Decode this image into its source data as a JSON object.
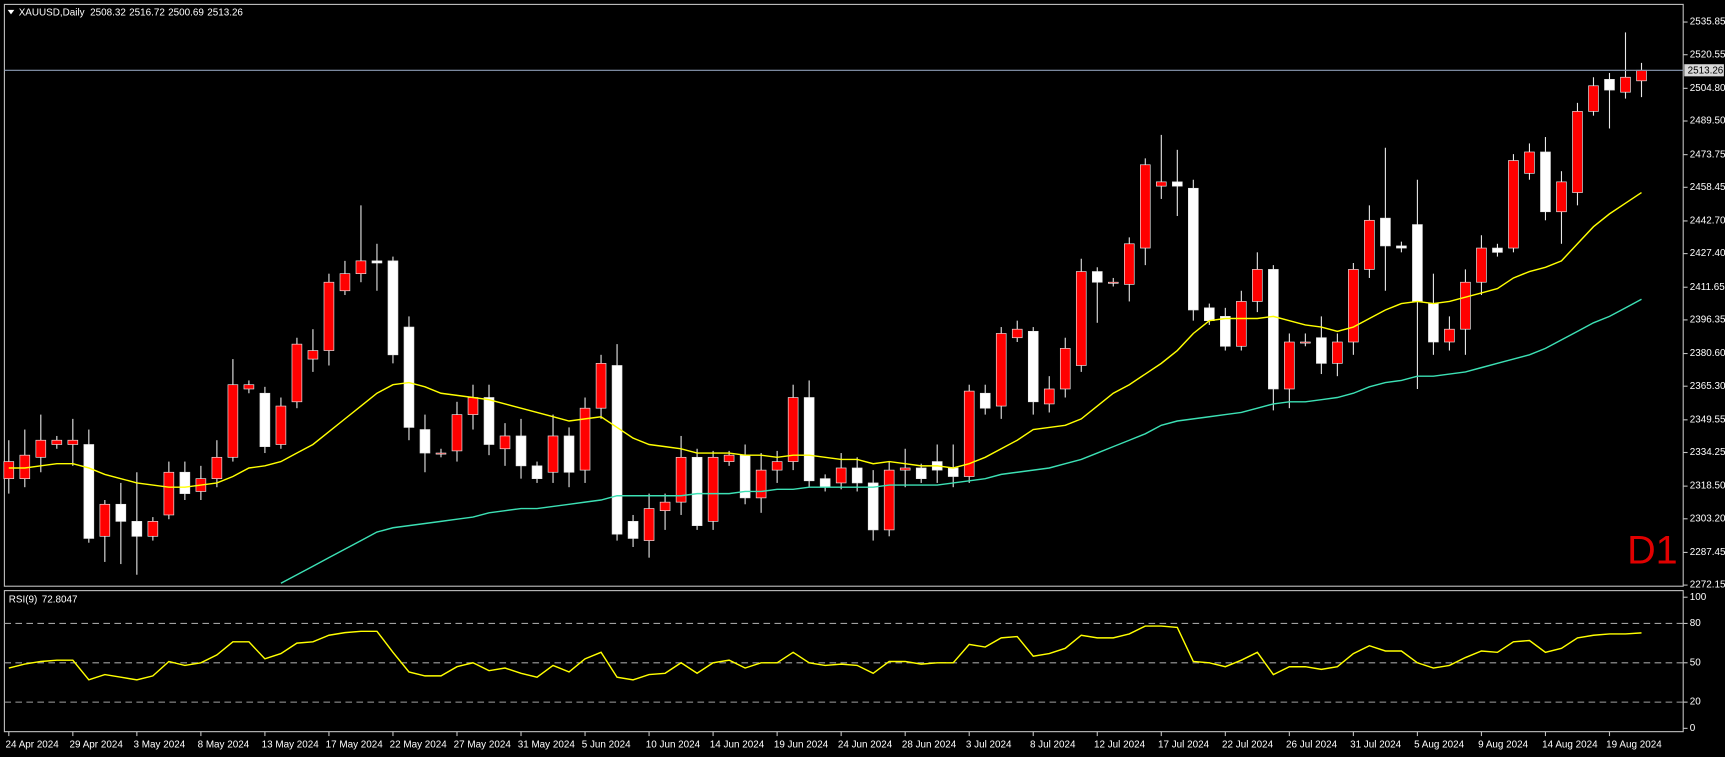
{
  "chart_data": [
    {
      "type": "candlestick",
      "title": "XAUUSD,Daily",
      "annotation": "D1",
      "categories": [
        "24 Apr 2024",
        null,
        null,
        null,
        "29 Apr 2024",
        null,
        null,
        null,
        "3 May 2024",
        null,
        null,
        null,
        "8 May 2024",
        null,
        null,
        null,
        "13 May 2024",
        null,
        null,
        null,
        "17 May 2024",
        null,
        null,
        null,
        "22 May 2024",
        null,
        null,
        null,
        "27 May 2024",
        null,
        null,
        null,
        "31 May 2024",
        null,
        null,
        null,
        "5 Jun 2024",
        null,
        null,
        null,
        "10 Jun 2024",
        null,
        null,
        null,
        "14 Jun 2024",
        null,
        null,
        null,
        "19 Jun 2024",
        null,
        null,
        null,
        "24 Jun 2024",
        null,
        null,
        null,
        "28 Jun 2024",
        null,
        null,
        null,
        "3 Jul 2024",
        null,
        null,
        null,
        "8 Jul 2024",
        null,
        null,
        null,
        "12 Jul 2024",
        null,
        null,
        null,
        "17 Jul 2024",
        null,
        null,
        null,
        "22 Jul 2024",
        null,
        null,
        null,
        "26 Jul 2024",
        null,
        null,
        null,
        "31 Jul 2024",
        null,
        null,
        null,
        "5 Aug 2024",
        null,
        null,
        null,
        "9 Aug 2024",
        null,
        null,
        null,
        "14 Aug 2024",
        null,
        null,
        null,
        "19 Aug 2024",
        null,
        null
      ],
      "open": [
        2322,
        2322,
        2332,
        2338,
        2338,
        2338,
        2295,
        2310,
        2302,
        2295,
        2305,
        2325,
        2316,
        2322,
        2332,
        2364,
        2362,
        2338,
        2358,
        2378,
        2382,
        2410,
        2418,
        2424,
        2424,
        2393,
        2345,
        2334,
        2335,
        2352,
        2360,
        2336,
        2342,
        2328,
        2325,
        2342,
        2326,
        2355,
        2375,
        2302,
        2293,
        2307,
        2311,
        2332,
        2302,
        2330,
        2333,
        2313,
        2326,
        2330,
        2360,
        2322,
        2320,
        2327,
        2320,
        2298,
        2326,
        2327,
        2330,
        2327,
        2323,
        2362,
        2356,
        2388,
        2391,
        2357,
        2364,
        2375,
        2419,
        2414,
        2413,
        2430,
        2459,
        2461,
        2458,
        2402,
        2398,
        2384,
        2405,
        2420,
        2364,
        2386,
        2388,
        2376,
        2386,
        2420,
        2444,
        2431,
        2441,
        2404,
        2386,
        2392,
        2414,
        2430,
        2430,
        2465,
        2475,
        2447,
        2456,
        2494,
        2509,
        2503,
        2508.32
      ],
      "high": [
        2340,
        2345,
        2352,
        2342,
        2350,
        2345,
        2312,
        2320,
        2325,
        2304,
        2330,
        2330,
        2328,
        2340,
        2378,
        2368,
        2365,
        2360,
        2388,
        2392,
        2418,
        2424,
        2450,
        2432,
        2426,
        2398,
        2352,
        2336,
        2358,
        2366,
        2366,
        2348,
        2350,
        2330,
        2352,
        2346,
        2360,
        2380,
        2385,
        2305,
        2315,
        2315,
        2342,
        2336,
        2335,
        2335,
        2338,
        2334,
        2335,
        2366,
        2368,
        2324,
        2334,
        2332,
        2326,
        2330,
        2336,
        2329,
        2338,
        2338,
        2366,
        2366,
        2393,
        2396,
        2393,
        2370,
        2388,
        2425,
        2421,
        2416,
        2435,
        2472,
        2483,
        2476,
        2462,
        2404,
        2402,
        2410,
        2428,
        2422,
        2390,
        2390,
        2398,
        2390,
        2423,
        2450,
        2477,
        2433,
        2462,
        2418,
        2398,
        2420,
        2436,
        2432,
        2474,
        2479,
        2482,
        2466,
        2498,
        2510,
        2512,
        2531,
        2516.72
      ],
      "low": [
        2315,
        2318,
        2325,
        2336,
        2328,
        2292,
        2283,
        2282,
        2277,
        2293,
        2303,
        2312,
        2312,
        2318,
        2330,
        2362,
        2334,
        2336,
        2355,
        2372,
        2375,
        2408,
        2414,
        2410,
        2376,
        2340,
        2325,
        2332,
        2330,
        2345,
        2333,
        2328,
        2322,
        2320,
        2320,
        2318,
        2320,
        2350,
        2293,
        2290,
        2285,
        2298,
        2305,
        2298,
        2298,
        2328,
        2310,
        2306,
        2320,
        2326,
        2318,
        2316,
        2317,
        2316,
        2293,
        2295,
        2318,
        2320,
        2320,
        2318,
        2320,
        2352,
        2350,
        2386,
        2352,
        2353,
        2360,
        2372,
        2395,
        2412,
        2405,
        2422,
        2453,
        2445,
        2396,
        2394,
        2382,
        2382,
        2400,
        2354,
        2355,
        2384,
        2371,
        2370,
        2380,
        2416,
        2410,
        2428,
        2364,
        2380,
        2382,
        2380,
        2408,
        2426,
        2428,
        2462,
        2443,
        2432,
        2450,
        2492,
        2486,
        2500,
        2500.69
      ],
      "close": [
        2330,
        2333,
        2340,
        2340,
        2340,
        2294,
        2310,
        2302,
        2295,
        2302,
        2325,
        2315,
        2322,
        2332,
        2366,
        2366,
        2337,
        2356,
        2385,
        2382,
        2414,
        2418,
        2424,
        2423,
        2380,
        2346,
        2334,
        2334,
        2352,
        2360,
        2338,
        2342,
        2328,
        2322,
        2342,
        2325,
        2355,
        2376,
        2296,
        2294,
        2308,
        2311,
        2332,
        2300,
        2332,
        2333,
        2313,
        2326,
        2330,
        2360,
        2321,
        2318,
        2327,
        2320,
        2298,
        2326,
        2327,
        2322,
        2326,
        2323,
        2363,
        2355,
        2390,
        2392,
        2358,
        2364,
        2383,
        2419,
        2414,
        2414,
        2432,
        2469,
        2461,
        2459,
        2401,
        2396,
        2384,
        2405,
        2420,
        2364,
        2386,
        2386,
        2376,
        2386,
        2420,
        2443,
        2431,
        2430,
        2405,
        2386,
        2392,
        2414,
        2430,
        2428,
        2471,
        2475,
        2447,
        2461,
        2494,
        2506,
        2504,
        2510,
        2513.26
      ],
      "up_color": "#ff0000",
      "down_color": "#ffffff",
      "wick_color": "#e8e8e8",
      "lines": [
        {
          "color": "#ffff00",
          "values": [
            2327,
            2327,
            2328,
            2329,
            2329,
            2327,
            2324,
            2322,
            2320,
            2319,
            2318,
            2318,
            2319,
            2320,
            2323,
            2327,
            2328,
            2330,
            2334,
            2338,
            2344,
            2350,
            2356,
            2362,
            2366,
            2367,
            2365,
            2362,
            2361,
            2360,
            2359,
            2357,
            2355,
            2353,
            2351,
            2349,
            2350,
            2351,
            2346,
            2341,
            2338,
            2337,
            2336,
            2334,
            2334,
            2334,
            2333,
            2333,
            2332,
            2333,
            2333,
            2332,
            2331,
            2331,
            2329,
            2330,
            2329,
            2328,
            2328,
            2327,
            2329,
            2332,
            2336,
            2340,
            2345,
            2346,
            2347,
            2350,
            2356,
            2362,
            2366,
            2371,
            2376,
            2382,
            2390,
            2396,
            2397,
            2397,
            2397,
            2398,
            2396,
            2394,
            2393,
            2391,
            2393,
            2397,
            2401,
            2404,
            2405,
            2404,
            2405,
            2407,
            2409,
            2411,
            2416,
            2419,
            2421,
            2424,
            2432,
            2440,
            2446,
            2451,
            2456
          ]
        },
        {
          "color": "#3ce0b4",
          "values": [
            null,
            null,
            null,
            null,
            null,
            null,
            null,
            null,
            null,
            null,
            null,
            null,
            null,
            null,
            null,
            null,
            null,
            2273,
            2277,
            2281,
            2285,
            2289,
            2293,
            2297,
            2299,
            2300,
            2301,
            2302,
            2303,
            2304,
            2306,
            2307,
            2308,
            2308,
            2309,
            2310,
            2311,
            2312,
            2314,
            2314,
            2314,
            2314,
            2314,
            2315,
            2315,
            2315,
            2316,
            2316,
            2317,
            2317,
            2318,
            2318,
            2318,
            2318,
            2318,
            2319,
            2319,
            2319,
            2319,
            2320,
            2321,
            2322,
            2324,
            2325,
            2326,
            2327,
            2329,
            2331,
            2334,
            2337,
            2340,
            2343,
            2347,
            2349,
            2350,
            2351,
            2352,
            2353,
            2355,
            2357,
            2358,
            2358,
            2359,
            2360,
            2362,
            2365,
            2367,
            2368,
            2370,
            2370,
            2371,
            2372,
            2374,
            2376,
            2378,
            2380,
            2383,
            2387,
            2391,
            2395,
            2398,
            2402,
            2406
          ]
        }
      ],
      "ylim": [
        2271.63,
        2544.11
      ],
      "yticks": [
        2535.85,
        2520.55,
        {
          "value": 2504.8,
          "label": "2504.80"
        },
        {
          "value": 2489.5,
          "label": "2489.50"
        },
        2473.75,
        2458.45,
        {
          "value": 2442.7,
          "label": "2442.70"
        },
        {
          "value": 2427.4,
          "label": "2427.40"
        },
        2411.65,
        2396.35,
        {
          "value": 2380.6,
          "label": "2380.60"
        },
        {
          "value": 2365.3,
          "label": "2365.30"
        },
        2349.55,
        2334.25,
        {
          "value": 2318.5,
          "label": "2318.50"
        },
        {
          "value": 2303.2,
          "label": "2303.20"
        },
        2287.45,
        2272.15
      ],
      "last_price_line": true
    },
    {
      "type": "line",
      "title": "RSI(9)",
      "series": [
        {
          "color": "#ffff00",
          "values": [
            46,
            49,
            51,
            52,
            52,
            37,
            41,
            39,
            37,
            40,
            51,
            48,
            50,
            56,
            66,
            66,
            53,
            57,
            65,
            66,
            71,
            73,
            74,
            74,
            58,
            43,
            40,
            40,
            47,
            50,
            44,
            46,
            42,
            39,
            48,
            43,
            53,
            58,
            39,
            37,
            41,
            42,
            50,
            42,
            50,
            52,
            46,
            50,
            50,
            58,
            50,
            48,
            49,
            48,
            42,
            51,
            51,
            49,
            50,
            50,
            64,
            62,
            69,
            70,
            55,
            57,
            61,
            71,
            69,
            69,
            72,
            78,
            78,
            77,
            51,
            50,
            47,
            52,
            58,
            41,
            47,
            47,
            45,
            47,
            57,
            63,
            59,
            59,
            50,
            46,
            48,
            54,
            59,
            58,
            66,
            67,
            58,
            61,
            69,
            71,
            72,
            72,
            72.8047
          ]
        }
      ],
      "ylim": [
        -2.52,
        105.04
      ],
      "yticks": [
        0,
        20,
        50,
        80,
        100
      ],
      "grid": true
    }
  ]
}
